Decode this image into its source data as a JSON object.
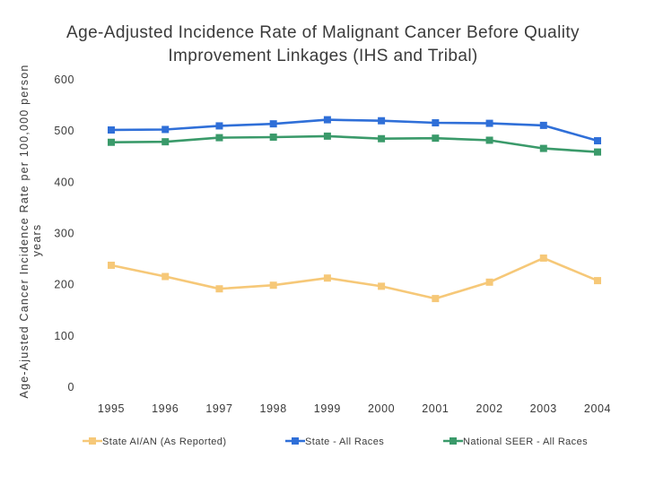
{
  "chart_data": {
    "type": "line",
    "title": [
      "Age-Adjusted Incidence Rate of Malignant Cancer Before Quality",
      "Improvement Linkages (IHS and Tribal)"
    ],
    "ylabel": [
      "Age-Ajusted Cancer Incidence Rate per 100,000 person",
      "years"
    ],
    "xlabel": "",
    "categories": [
      "1995",
      "1996",
      "1997",
      "1998",
      "1999",
      "2000",
      "2001",
      "2002",
      "2003",
      "2004"
    ],
    "ylim": [
      0,
      600
    ],
    "yticks": [
      "0",
      "100",
      "200",
      "300",
      "400",
      "500",
      "600"
    ],
    "grid": false,
    "legend_position": "bottom",
    "series": [
      {
        "name": "State AI/AN (As Reported)",
        "color": "#f6c878",
        "marker": "square",
        "values": [
          238,
          216,
          192,
          199,
          213,
          197,
          173,
          205,
          252,
          208
        ]
      },
      {
        "name": "State - All Races",
        "color": "#2f6fd8",
        "marker": "square",
        "values": [
          502,
          503,
          510,
          514,
          522,
          520,
          516,
          515,
          511,
          481
        ]
      },
      {
        "name": "National SEER - All Races",
        "color": "#3a9a6a",
        "marker": "square",
        "values": [
          478,
          479,
          487,
          488,
          490,
          485,
          486,
          482,
          466,
          459
        ]
      }
    ]
  }
}
